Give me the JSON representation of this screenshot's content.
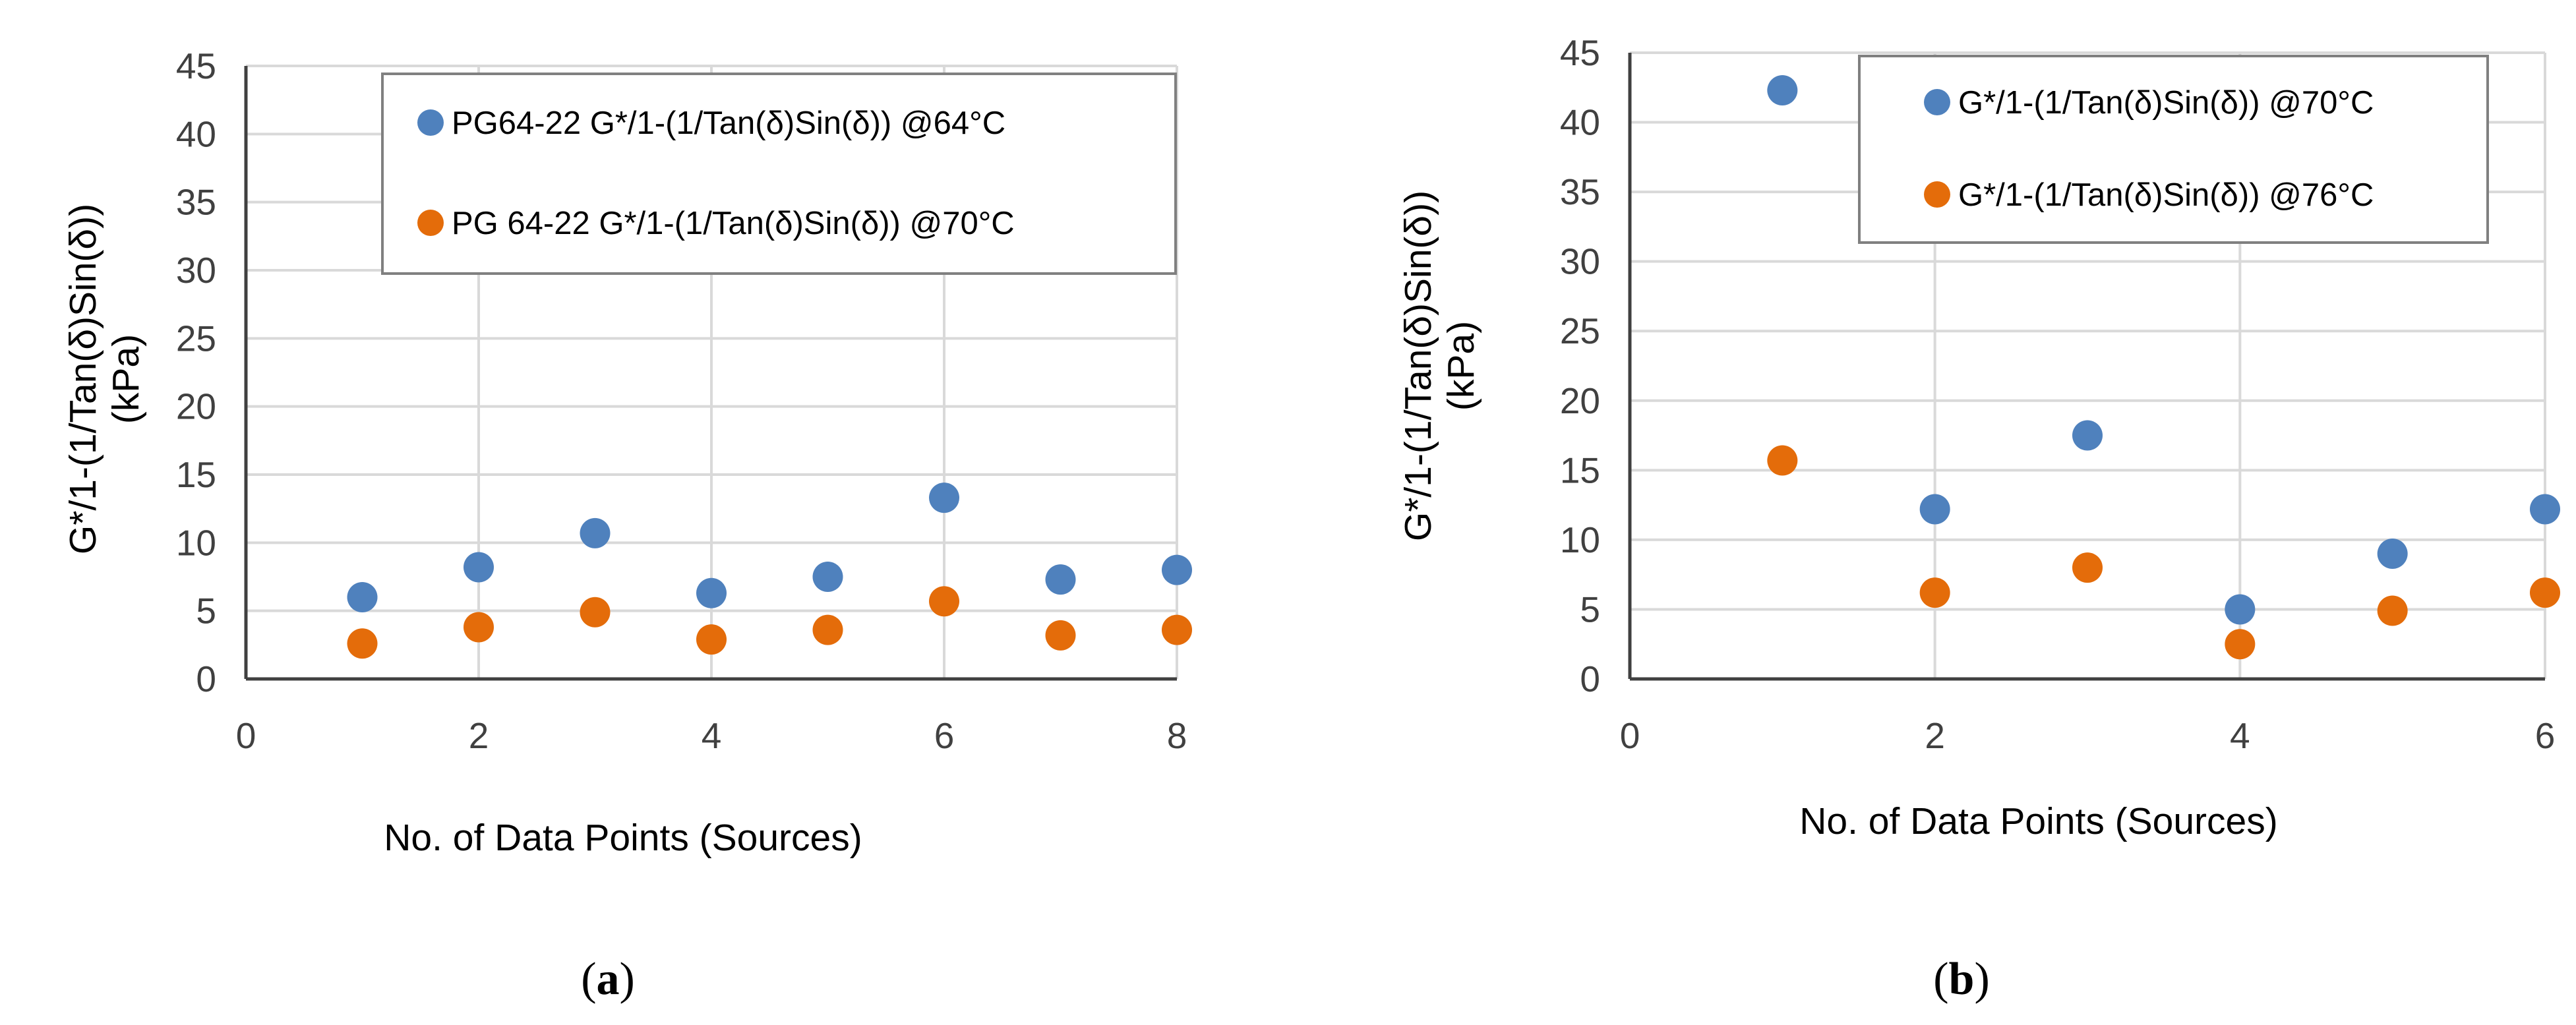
{
  "colors": {
    "series1": "#4F81BD",
    "series2": "#E46C0A",
    "grid": "#d9d9d9",
    "axis": "#404040",
    "legend_border": "#808080"
  },
  "chart_data": [
    {
      "id": "a",
      "type": "scatter",
      "caption": {
        "open": "(",
        "letter": "a",
        "close": ")"
      },
      "title": "",
      "xlabel": "No. of Data Points (Sources)",
      "ylabel_line1": "G*/1-(1/Tan(δ)Sin(δ))",
      "ylabel_line2": "(kPa)",
      "xlim": [
        0,
        8
      ],
      "ylim": [
        0,
        45
      ],
      "xticks": [
        0,
        2,
        4,
        6,
        8
      ],
      "yticks": [
        0,
        5,
        10,
        15,
        20,
        25,
        30,
        35,
        40,
        45
      ],
      "grid": true,
      "legend_position": "top-right",
      "series": [
        {
          "name": "PG64-22 G*/1-(1/Tan(δ)Sin(δ)) @64°C",
          "color": "#4F81BD",
          "x": [
            1,
            2,
            3,
            4,
            5,
            6,
            7,
            8
          ],
          "y": [
            6.0,
            8.2,
            10.7,
            6.3,
            7.5,
            13.3,
            7.3,
            8.0
          ]
        },
        {
          "name": "PG 64-22 G*/1-(1/Tan(δ)Sin(δ)) @70°C",
          "color": "#E46C0A",
          "x": [
            1,
            2,
            3,
            4,
            5,
            6,
            7,
            8
          ],
          "y": [
            2.6,
            3.8,
            4.9,
            2.9,
            3.6,
            5.7,
            3.2,
            3.6
          ]
        }
      ]
    },
    {
      "id": "b",
      "type": "scatter",
      "caption": {
        "open": "(",
        "letter": "b",
        "close": ")"
      },
      "title": "",
      "xlabel": "No. of Data Points (Sources)",
      "ylabel_line1": "G*/1-(1/Tan(δ)Sin(δ))",
      "ylabel_line2": "(kPa)",
      "xlim": [
        0,
        6
      ],
      "ylim": [
        0,
        45
      ],
      "xticks": [
        0,
        2,
        4,
        6
      ],
      "yticks": [
        0,
        5,
        10,
        15,
        20,
        25,
        30,
        35,
        40,
        45
      ],
      "grid": true,
      "legend_position": "top-right",
      "series": [
        {
          "name": "G*/1-(1/Tan(δ)Sin(δ)) @70°C",
          "color": "#4F81BD",
          "x": [
            1,
            2,
            3,
            4,
            5,
            6
          ],
          "y": [
            42.3,
            12.2,
            17.5,
            5.0,
            9.0,
            12.2
          ]
        },
        {
          "name": "G*/1-(1/Tan(δ)Sin(δ)) @76°C",
          "color": "#E46C0A",
          "x": [
            1,
            2,
            3,
            4,
            5,
            6
          ],
          "y": [
            15.7,
            6.2,
            8.0,
            2.5,
            4.9,
            6.2
          ]
        }
      ]
    }
  ]
}
